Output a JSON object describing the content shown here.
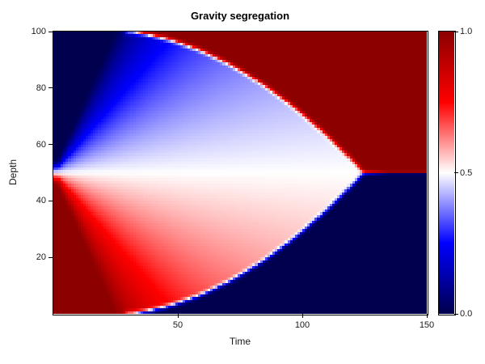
{
  "figure": {
    "background": "#ffffff",
    "text_color": "#1a1a1a",
    "axis_color": "#000000"
  },
  "chart_data": {
    "type": "heatmap",
    "title": "Gravity segregation",
    "xlabel": "Time",
    "ylabel": "Depth",
    "x_range": [
      0,
      150
    ],
    "y_range": [
      0,
      100
    ],
    "x_ticks": [
      50,
      100,
      150
    ],
    "y_ticks": [
      20,
      40,
      60,
      80,
      100
    ],
    "grid": {
      "nx": 150,
      "ny": 100
    },
    "value_range": [
      0,
      1
    ],
    "colorbar_ticks": [
      {
        "value": 1.0,
        "label": "1.0"
      },
      {
        "value": 0.5,
        "label": "0.5"
      },
      {
        "value": 0.0,
        "label": "0.0"
      }
    ],
    "colormap": {
      "name": "seismic",
      "stops": [
        {
          "pos": 0.0,
          "rgb": [
            0,
            0,
            78
          ]
        },
        {
          "pos": 0.25,
          "rgb": [
            0,
            0,
            255
          ]
        },
        {
          "pos": 0.5,
          "rgb": [
            255,
            255,
            255
          ]
        },
        {
          "pos": 0.75,
          "rgb": [
            255,
            0,
            0
          ]
        },
        {
          "pos": 1.0,
          "rgb": [
            140,
            0,
            0
          ]
        }
      ]
    },
    "field_model": {
      "description": "v(depth z, time t): rarefaction fan v = 0.5 - (z-50)/(fan_coefficient * t), clamped to [0,1]; pure states v=1 (z>50) / v=0 (z<50) behind shock fronts |z-50| = 50 - 50*((t-shock_start_time)/shock_span)^shock_exponent; fronts start at walls at t=shock_start_time and converge at depth 50 at t=125.",
      "center_depth": 50,
      "fan_coefficient": 4,
      "min_fan_time": 2,
      "shock_start_time": 24,
      "shock_span": 101,
      "convergence_time": 125,
      "shock_exponent": 1.9,
      "initial_state": {
        "upper": 0.0,
        "lower": 1.0
      },
      "final_state": {
        "upper": 1.0,
        "lower": 0.0
      },
      "supersample": 3,
      "blur_kernel": [
        0.2,
        0.6,
        0.2
      ],
      "post_convergence_blur_weight": 0.15
    }
  }
}
